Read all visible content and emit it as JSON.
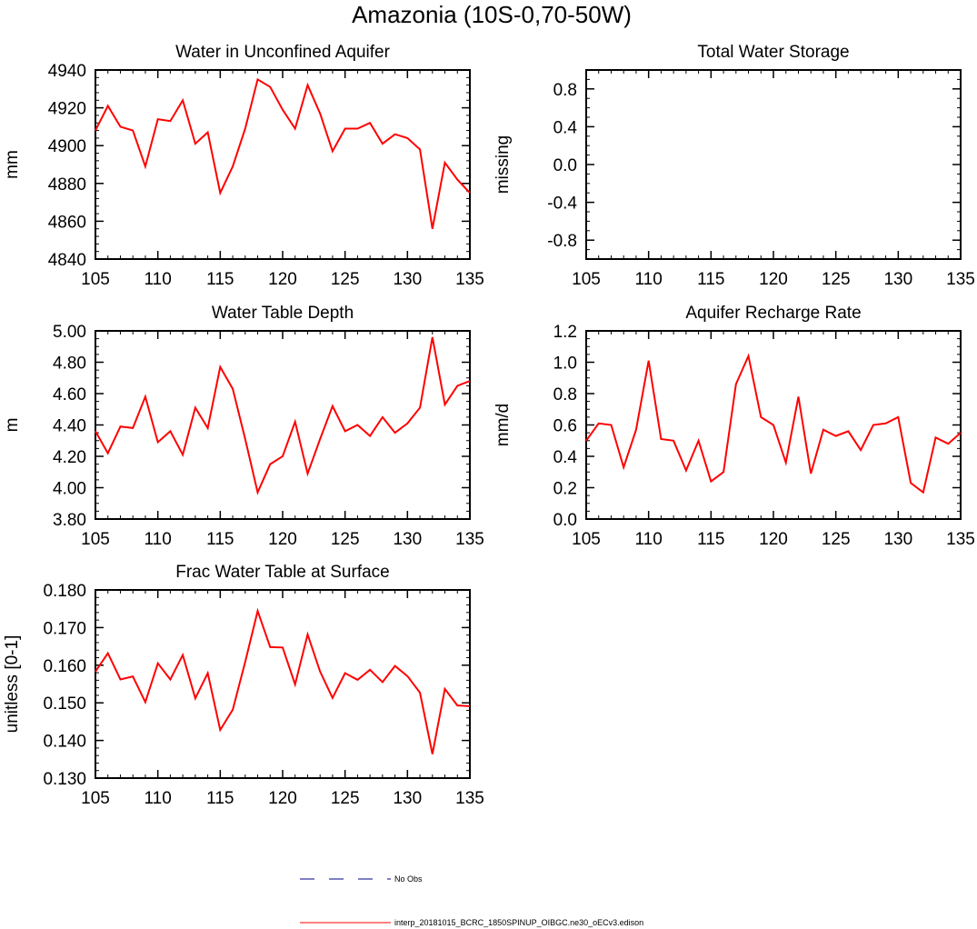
{
  "figure": {
    "title": "Amazonia (10S-0,70-50W)"
  },
  "chart_data": [
    {
      "type": "line",
      "title": "Water in Unconfined Aquifer",
      "xlabel": "",
      "ylabel": "mm",
      "xlim": [
        105,
        135
      ],
      "ylim": [
        4840,
        4940
      ],
      "xticks": [
        105,
        110,
        115,
        120,
        125,
        130,
        135
      ],
      "xtick_labels": [
        "105",
        "110",
        "115",
        "120",
        "125",
        "130",
        "135"
      ],
      "yticks": [
        4840,
        4860,
        4880,
        4900,
        4920,
        4940
      ],
      "ytick_labels": [
        "4840",
        "4860",
        "4880",
        "4900",
        "4920",
        "4940"
      ],
      "x_minor_step": 1,
      "y_minor_step": 4,
      "x": [
        105,
        106,
        107,
        108,
        109,
        110,
        111,
        112,
        113,
        114,
        115,
        116,
        117,
        118,
        119,
        120,
        121,
        122,
        123,
        124,
        125,
        126,
        127,
        128,
        129,
        130,
        131,
        132,
        133,
        134,
        135
      ],
      "series": [
        {
          "name": "interp_20181015_BCRC_1850SPINUP_OIBGC.ne30_oECv3.edison",
          "values": [
            4908,
            4921,
            4910,
            4908,
            4889,
            4914,
            4913,
            4924,
            4901,
            4907,
            4875,
            4889,
            4909,
            4935,
            4931,
            4919,
            4909,
            4932,
            4917,
            4897,
            4909,
            4909,
            4912,
            4901,
            4906,
            4904,
            4898,
            4856,
            4891,
            4882,
            4875
          ]
        }
      ]
    },
    {
      "type": "line",
      "title": "Total Water Storage",
      "xlabel": "",
      "ylabel": "missing",
      "xlim": [
        105,
        135
      ],
      "ylim": [
        -1,
        1
      ],
      "xticks": [
        105,
        110,
        115,
        120,
        125,
        130,
        135
      ],
      "xtick_labels": [
        "105",
        "110",
        "115",
        "120",
        "125",
        "130",
        "135"
      ],
      "yticks": [
        -0.8,
        -0.4,
        0,
        0.4,
        0.8
      ],
      "ytick_labels": [
        "-0.8",
        "-0.4",
        "0.0",
        "0.4",
        "0.8"
      ],
      "x_minor_step": 1,
      "y_minor_step": 0.1,
      "x": [],
      "series": []
    },
    {
      "type": "line",
      "title": "Water Table Depth",
      "xlabel": "",
      "ylabel": "m",
      "xlim": [
        105,
        135
      ],
      "ylim": [
        3.8,
        5.0
      ],
      "xticks": [
        105,
        110,
        115,
        120,
        125,
        130,
        135
      ],
      "xtick_labels": [
        "105",
        "110",
        "115",
        "120",
        "125",
        "130",
        "135"
      ],
      "yticks": [
        3.8,
        4.0,
        4.2,
        4.4,
        4.6,
        4.8,
        5.0
      ],
      "ytick_labels": [
        "3.80",
        "4.00",
        "4.20",
        "4.40",
        "4.60",
        "4.80",
        "5.00"
      ],
      "x_minor_step": 1,
      "y_minor_step": 0.05,
      "x": [
        105,
        106,
        107,
        108,
        109,
        110,
        111,
        112,
        113,
        114,
        115,
        116,
        117,
        118,
        119,
        120,
        121,
        122,
        123,
        124,
        125,
        126,
        127,
        128,
        129,
        130,
        131,
        132,
        133,
        134,
        135
      ],
      "series": [
        {
          "name": "interp_20181015_BCRC_1850SPINUP_OIBGC.ne30_oECv3.edison",
          "values": [
            4.36,
            4.22,
            4.39,
            4.38,
            4.58,
            4.29,
            4.36,
            4.21,
            4.51,
            4.38,
            4.77,
            4.63,
            4.31,
            3.97,
            4.15,
            4.2,
            4.42,
            4.09,
            4.31,
            4.52,
            4.36,
            4.4,
            4.33,
            4.45,
            4.35,
            4.41,
            4.51,
            4.96,
            4.53,
            4.65,
            4.68
          ]
        }
      ]
    },
    {
      "type": "line",
      "title": "Aquifer Recharge Rate",
      "xlabel": "",
      "ylabel": "mm/d",
      "xlim": [
        105,
        135
      ],
      "ylim": [
        0,
        1.2
      ],
      "xticks": [
        105,
        110,
        115,
        120,
        125,
        130,
        135
      ],
      "xtick_labels": [
        "105",
        "110",
        "115",
        "120",
        "125",
        "130",
        "135"
      ],
      "yticks": [
        0,
        0.2,
        0.4,
        0.6,
        0.8,
        1.0,
        1.2
      ],
      "ytick_labels": [
        "0.0",
        "0.2",
        "0.4",
        "0.6",
        "0.8",
        "1.0",
        "1.2"
      ],
      "x_minor_step": 1,
      "y_minor_step": 0.05,
      "x": [
        105,
        106,
        107,
        108,
        109,
        110,
        111,
        112,
        113,
        114,
        115,
        116,
        117,
        118,
        119,
        120,
        121,
        122,
        123,
        124,
        125,
        126,
        127,
        128,
        129,
        130,
        131,
        132,
        133,
        134,
        135
      ],
      "series": [
        {
          "name": "interp_20181015_BCRC_1850SPINUP_OIBGC.ne30_oECv3.edison",
          "values": [
            0.5,
            0.61,
            0.6,
            0.33,
            0.57,
            1.01,
            0.51,
            0.5,
            0.31,
            0.5,
            0.24,
            0.3,
            0.86,
            1.04,
            0.65,
            0.6,
            0.36,
            0.78,
            0.29,
            0.57,
            0.53,
            0.56,
            0.44,
            0.6,
            0.61,
            0.65,
            0.23,
            0.17,
            0.52,
            0.48,
            0.55
          ]
        }
      ]
    },
    {
      "type": "line",
      "title": "Frac Water Table at Surface",
      "xlabel": "",
      "ylabel": "unitless [0-1]",
      "xlim": [
        105,
        135
      ],
      "ylim": [
        0.13,
        0.18
      ],
      "xticks": [
        105,
        110,
        115,
        120,
        125,
        130,
        135
      ],
      "xtick_labels": [
        "105",
        "110",
        "115",
        "120",
        "125",
        "130",
        "135"
      ],
      "yticks": [
        0.13,
        0.14,
        0.15,
        0.16,
        0.17,
        0.18
      ],
      "ytick_labels": [
        "0.130",
        "0.140",
        "0.150",
        "0.160",
        "0.170",
        "0.180"
      ],
      "x_minor_step": 1,
      "y_minor_step": 0.002,
      "x": [
        105,
        106,
        107,
        108,
        109,
        110,
        111,
        112,
        113,
        114,
        115,
        116,
        117,
        118,
        119,
        120,
        121,
        122,
        123,
        124,
        125,
        126,
        127,
        128,
        129,
        130,
        131,
        132,
        133,
        134,
        135
      ],
      "series": [
        {
          "name": "interp_20181015_BCRC_1850SPINUP_OIBGC.ne30_oECv3.edison",
          "values": [
            0.1583,
            0.1632,
            0.1562,
            0.157,
            0.1502,
            0.1605,
            0.1562,
            0.1627,
            0.1512,
            0.1579,
            0.1428,
            0.1482,
            0.1609,
            0.1744,
            0.1648,
            0.1647,
            0.1549,
            0.1682,
            0.1583,
            0.1513,
            0.1579,
            0.1561,
            0.1588,
            0.1555,
            0.1598,
            0.1571,
            0.1527,
            0.1364,
            0.1537,
            0.1493,
            0.1491
          ]
        }
      ]
    }
  ],
  "legend": {
    "entries": [
      {
        "label": "No Obs",
        "color": "#00008b",
        "style": "dashed"
      },
      {
        "label": "interp_20181015_BCRC_1850SPINUP_OIBGC.ne30_oECv3.edison",
        "color": "#ff0000",
        "style": "solid"
      }
    ]
  }
}
